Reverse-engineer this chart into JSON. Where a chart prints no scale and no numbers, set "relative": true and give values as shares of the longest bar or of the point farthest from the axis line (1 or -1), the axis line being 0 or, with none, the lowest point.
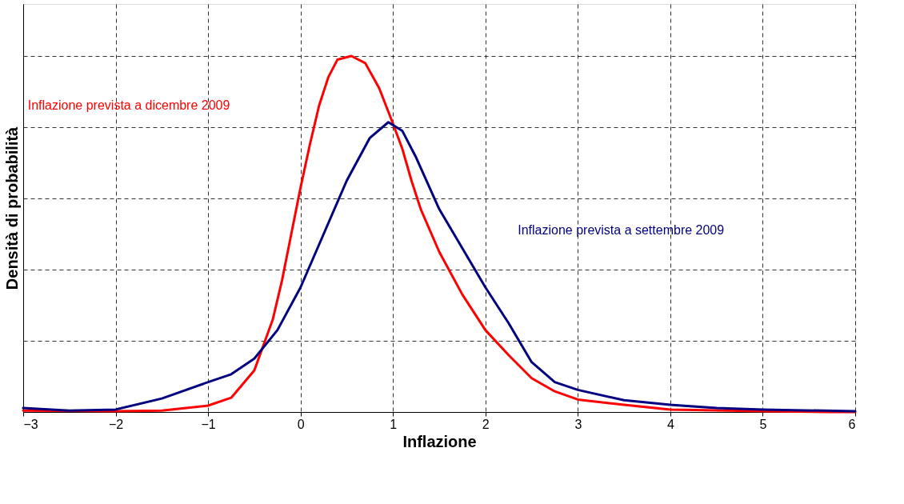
{
  "chart_data": {
    "type": "line",
    "relative": true,
    "xlabel": "Inflazione",
    "ylabel": "Densità di probabilità",
    "xlim": [
      -3,
      6
    ],
    "xticks": [
      -3,
      -2,
      -1,
      0,
      1,
      2,
      3,
      4,
      5,
      6
    ],
    "grid": true,
    "legend": false,
    "line_style": "solid",
    "marker": "none",
    "series": [
      {
        "name": "Inflazione prevista a dicembre 2009",
        "color": "#ff0000",
        "x": [
          -3,
          -2,
          -1.5,
          -1,
          -0.75,
          -0.5,
          -0.3,
          -0.2,
          -0.1,
          0,
          0.1,
          0.2,
          0.3,
          0.4,
          0.55,
          0.7,
          0.85,
          1.0,
          1.1,
          1.2,
          1.3,
          1.5,
          1.75,
          2.0,
          2.25,
          2.5,
          2.75,
          3.0,
          3.5,
          4,
          5,
          5.7,
          6
        ],
        "values": [
          0.004,
          0.002,
          0.004,
          0.018,
          0.04,
          0.117,
          0.26,
          0.37,
          0.5,
          0.63,
          0.75,
          0.86,
          0.94,
          0.99,
          1.0,
          0.98,
          0.91,
          0.81,
          0.74,
          0.65,
          0.57,
          0.45,
          0.33,
          0.23,
          0.16,
          0.095,
          0.058,
          0.035,
          0.02,
          0.007,
          0.002,
          0,
          0
        ]
      },
      {
        "name": "Inflazione prevista a settembre 2009",
        "color": "#000080",
        "x": [
          -3,
          -2.5,
          -2,
          -1.5,
          -1,
          -0.75,
          -0.5,
          -0.25,
          0,
          0.25,
          0.5,
          0.75,
          0.95,
          1.1,
          1.25,
          1.5,
          1.75,
          2.0,
          2.25,
          2.5,
          2.75,
          3,
          3.5,
          4,
          4.5,
          5,
          6
        ],
        "values": [
          0.011,
          0.004,
          0.007,
          0.038,
          0.084,
          0.106,
          0.15,
          0.23,
          0.35,
          0.5,
          0.65,
          0.77,
          0.814,
          0.79,
          0.715,
          0.57,
          0.46,
          0.35,
          0.25,
          0.14,
          0.084,
          0.062,
          0.033,
          0.02,
          0.011,
          0.007,
          0.002
        ]
      }
    ]
  }
}
